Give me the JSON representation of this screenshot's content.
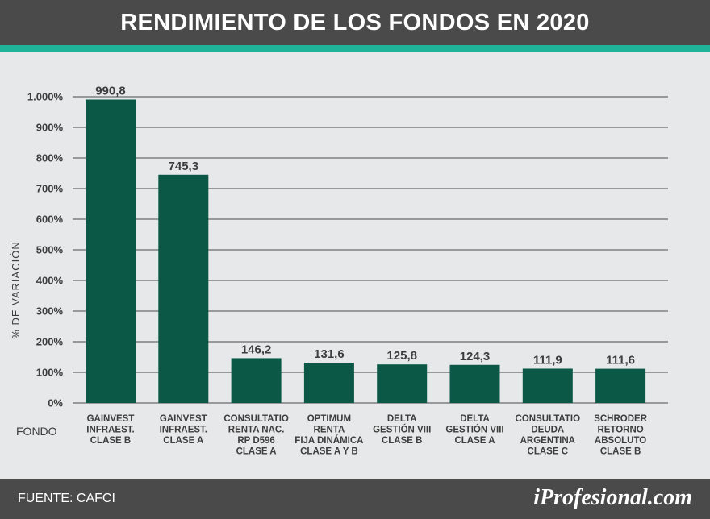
{
  "header": {
    "title": "RENDIMIENTO DE LOS FONDOS EN 2020"
  },
  "footer": {
    "source": "FUENTE: CAFCI",
    "brand": "iProfesional.com"
  },
  "colors": {
    "bar": "#0b5847",
    "accent": "#1fb39a",
    "grid": "#4a4a4a",
    "text": "#3d3d3d"
  },
  "chart_data": {
    "type": "bar",
    "title": "RENDIMIENTO DE LOS FONDOS EN 2020",
    "ylabel": "% DE VARIACIÓN",
    "xlabel": "FONDO",
    "ylim": [
      0,
      1000
    ],
    "yticks": [
      {
        "value": 0,
        "label": "0%"
      },
      {
        "value": 100,
        "label": "100%"
      },
      {
        "value": 200,
        "label": "200%"
      },
      {
        "value": 300,
        "label": "300%"
      },
      {
        "value": 400,
        "label": "400%"
      },
      {
        "value": 500,
        "label": "500%"
      },
      {
        "value": 600,
        "label": "600%"
      },
      {
        "value": 700,
        "label": "700%"
      },
      {
        "value": 800,
        "label": "800%"
      },
      {
        "value": 900,
        "label": "900%"
      },
      {
        "value": 1000,
        "label": "1.000%"
      }
    ],
    "grid": true,
    "categories": [
      [
        "GAINVEST",
        "INFRAEST.",
        "CLASE B"
      ],
      [
        "GAINVEST",
        "INFRAEST.",
        "CLASE A"
      ],
      [
        "CONSULTATIO",
        "RENTA NAC.",
        "RP D596",
        "CLASE A"
      ],
      [
        "OPTIMUM",
        "RENTA",
        "FIJA DINÁMICA",
        "CLASE A Y B"
      ],
      [
        "DELTA",
        "GESTIÓN VIII",
        "CLASE B"
      ],
      [
        "DELTA",
        "GESTIÓN VIII",
        "CLASE A"
      ],
      [
        "CONSULTATIO",
        "DEUDA",
        "ARGENTINA",
        "CLASE C"
      ],
      [
        "SCHRODER",
        "RETORNO",
        "ABSOLUTO",
        "CLASE B"
      ]
    ],
    "values": [
      990.8,
      745.3,
      146.2,
      131.6,
      125.8,
      124.3,
      111.9,
      111.6
    ],
    "value_labels": [
      "990,8",
      "745,3",
      "146,2",
      "131,6",
      "125,8",
      "124,3",
      "111,9",
      "111,6"
    ]
  }
}
